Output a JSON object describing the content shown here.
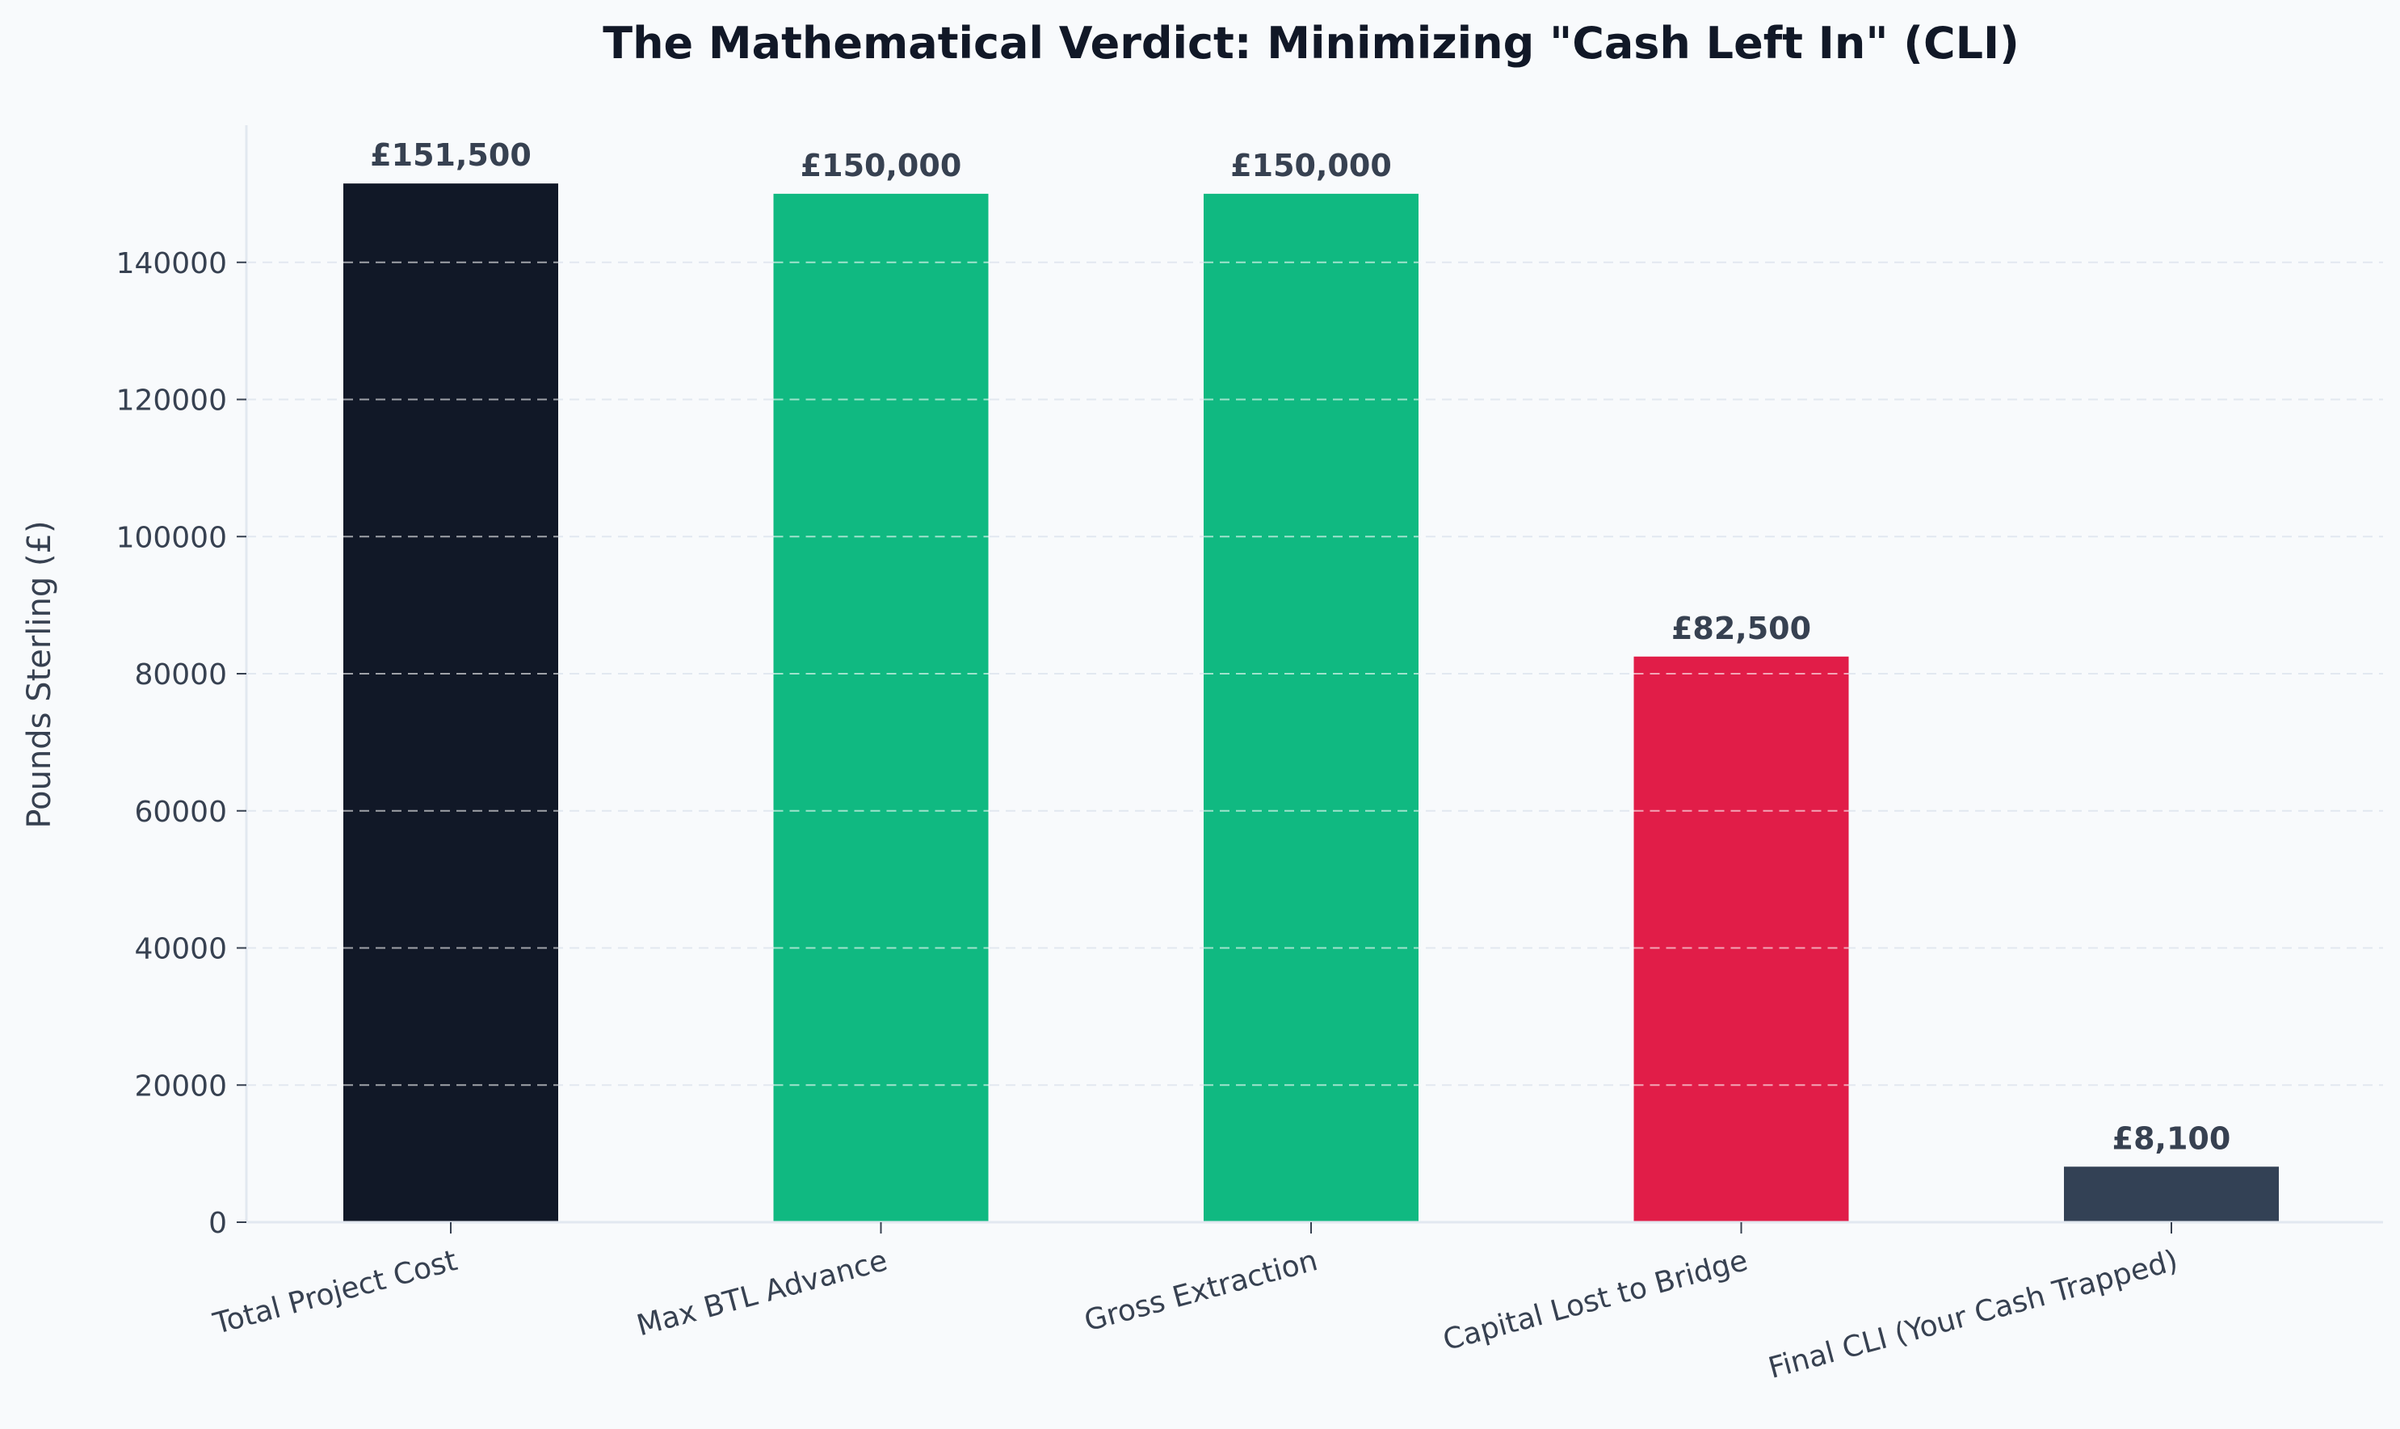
{
  "chart_data": {
    "type": "bar",
    "title": "The Mathematical Verdict: Minimizing \"Cash Left In\" (CLI)",
    "xlabel": "",
    "ylabel": "Pounds Sterling (£)",
    "ylim": [
      0,
      160000
    ],
    "yticks": [
      "0",
      "20000",
      "40000",
      "60000",
      "80000",
      "100000",
      "120000",
      "140000"
    ],
    "ytick_values": [
      0,
      20000,
      40000,
      60000,
      80000,
      100000,
      120000,
      140000
    ],
    "categories": [
      "Total Project Cost",
      "Max BTL Advance",
      "Gross Extraction",
      "Capital Lost to Bridge",
      "Final CLI (Your Cash Trapped)"
    ],
    "values": [
      151500,
      150000,
      150000,
      82500,
      8100
    ],
    "data_labels": [
      "£151,500",
      "£150,000",
      "£150,000",
      "£82,500",
      "£8,100"
    ],
    "colors": [
      "#111827",
      "#10b981",
      "#10b981",
      "#e11d48",
      "#334155"
    ],
    "grid": true,
    "grid_style": "dashed-horizontal",
    "legend": "none"
  }
}
